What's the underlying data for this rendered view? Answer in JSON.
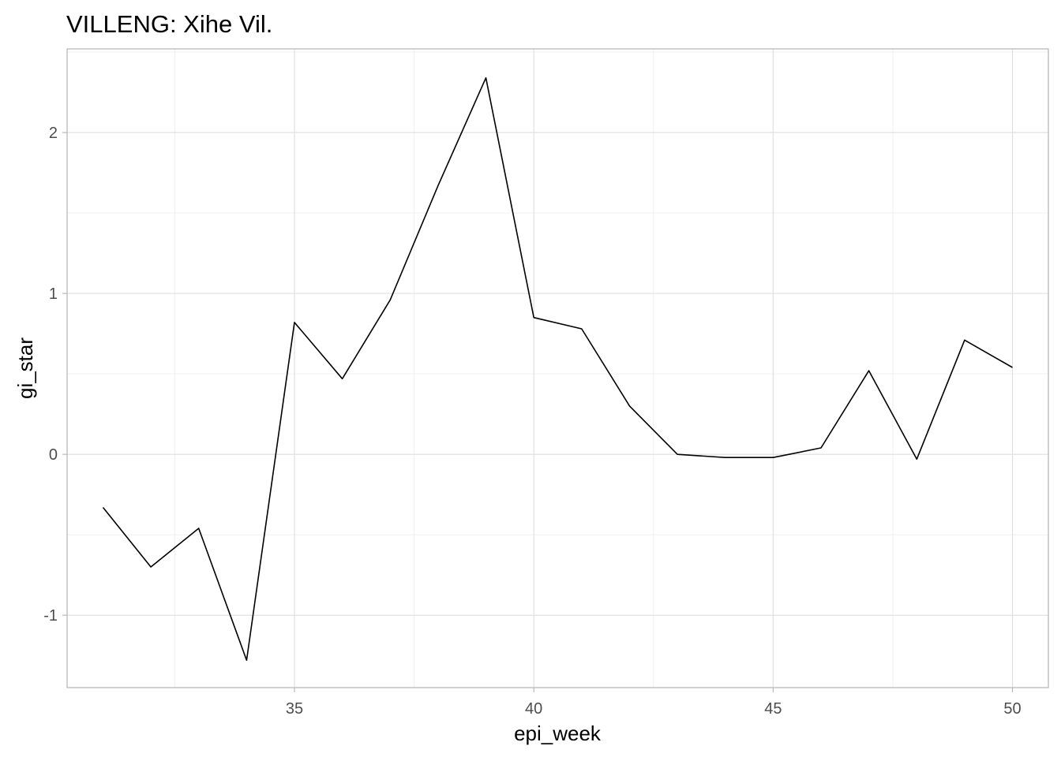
{
  "chart_data": {
    "type": "line",
    "title": "VILLENG: Xihe Vil.",
    "xlabel": "epi_week",
    "ylabel": "gi_star",
    "xlim": [
      30.25,
      50.75
    ],
    "ylim": [
      -1.45,
      2.52
    ],
    "x_ticks": [
      35,
      40,
      45,
      50
    ],
    "x_tick_labels": [
      "35",
      "40",
      "45",
      "50"
    ],
    "y_ticks": [
      -1,
      0,
      1,
      2
    ],
    "y_tick_labels": [
      "-1",
      "0",
      "1",
      "2"
    ],
    "grid": true,
    "series": [
      {
        "color": "#000000",
        "x": [
          31,
          32,
          33,
          34,
          35,
          36,
          37,
          38,
          39,
          40,
          41,
          42,
          43,
          44,
          45,
          46,
          47,
          48,
          49,
          50
        ],
        "values": [
          -0.33,
          -0.7,
          -0.46,
          -1.28,
          0.82,
          0.47,
          0.96,
          1.67,
          2.34,
          0.85,
          0.78,
          0.3,
          0.0,
          -0.02,
          -0.02,
          0.04,
          0.52,
          -0.03,
          0.71,
          0.54
        ]
      }
    ]
  }
}
